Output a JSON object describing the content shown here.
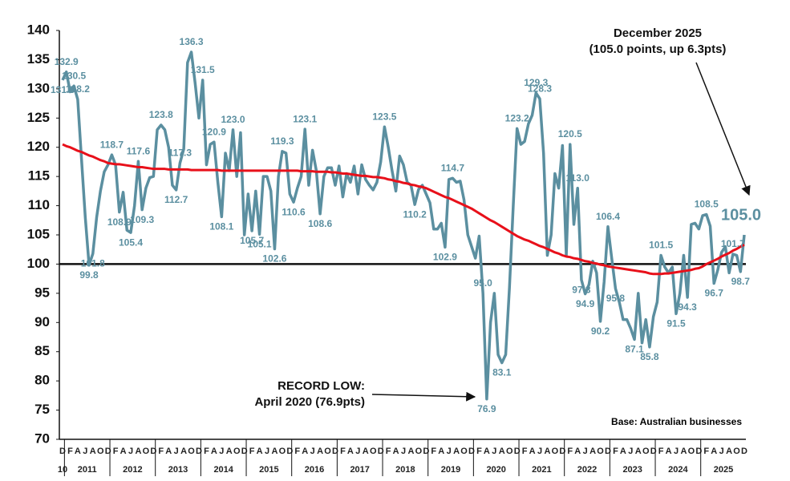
{
  "chart_data": {
    "type": "line",
    "annotations": [
      "December 2025",
      "(105.0 points, up 6.3pts)",
      "RECORD LOW:",
      "April 2020 (76.9pts)",
      "Base: Australian businesses"
    ],
    "ylim": [
      70,
      140
    ],
    "yticks": [
      70,
      75,
      80,
      85,
      90,
      95,
      100,
      105,
      110,
      115,
      120,
      125,
      130,
      135,
      140
    ],
    "reference_line": 100,
    "x_groups": [
      "10",
      "2011",
      "2012",
      "2013",
      "2014",
      "2015",
      "2016",
      "2017",
      "2018",
      "2019",
      "2020",
      "2021",
      "2022",
      "2023",
      "2024",
      "2025"
    ],
    "categories": [
      "D",
      null,
      "F",
      null,
      "A",
      null,
      "J",
      null,
      "A",
      null,
      "O",
      null,
      "D",
      null,
      "F",
      null,
      "A",
      null,
      "J",
      null,
      "A",
      null,
      "O",
      null,
      "D",
      null,
      "F",
      null,
      "A",
      null,
      "J",
      null,
      "A",
      null,
      "O",
      null,
      "D",
      null,
      "F",
      null,
      "A",
      null,
      "J",
      null,
      "A",
      null,
      "O",
      null,
      "D",
      null,
      "F",
      null,
      "A",
      null,
      "J",
      null,
      "A",
      null,
      "O",
      null,
      "D",
      null,
      "F",
      null,
      "A",
      null,
      "J",
      null,
      "A",
      null,
      "O",
      null,
      "D",
      null,
      "F",
      null,
      "A",
      null,
      "J",
      null,
      "A",
      null,
      "O",
      null,
      "D",
      null,
      "F",
      null,
      "A",
      null,
      "J",
      null,
      "A",
      null,
      "O",
      null,
      "D",
      null,
      "F",
      null,
      "A",
      null,
      "J",
      null,
      "A",
      null,
      "O",
      null,
      "D",
      null,
      "F",
      null,
      "A",
      null,
      "J",
      null,
      "A",
      null,
      "O",
      null,
      "D",
      null,
      "F",
      null,
      "A",
      null,
      "J",
      null,
      "A",
      null,
      "O",
      null,
      "D",
      null,
      "F",
      null,
      "A",
      null,
      "J",
      null,
      "A",
      null,
      "O",
      null,
      "D",
      null,
      "F",
      null,
      "A",
      null,
      "J",
      null,
      "A",
      null,
      "O",
      null,
      "D",
      null,
      "F",
      null,
      "A",
      null,
      "J",
      null,
      "A",
      null,
      "O",
      null,
      "D",
      null,
      "F",
      null,
      "A",
      null,
      "J",
      null,
      "A",
      null,
      "O",
      null,
      "D"
    ],
    "series": [
      {
        "color": "#5b8fa0",
        "values": [
          131.5,
          132.9,
          129.5,
          130.5,
          128.2,
          118,
          108,
          99.8,
          101.8,
          108,
          112.5,
          115.8,
          117,
          118.7,
          117,
          108.9,
          112.3,
          105.8,
          105.4,
          110,
          117.6,
          109.3,
          113,
          114.8,
          115,
          123,
          123.8,
          123,
          120,
          113.5,
          112.7,
          117.3,
          119.7,
          134.5,
          136.3,
          131,
          125,
          131.5,
          117,
          120.5,
          120.9,
          114,
          108.1,
          119,
          116,
          123,
          115,
          122.5,
          105,
          112,
          105.7,
          112.5,
          105.1,
          115,
          115,
          112.5,
          102.6,
          115,
          119.3,
          119,
          112,
          110.6,
          113,
          115,
          123.1,
          113.5,
          119.5,
          116,
          108.6,
          115,
          116.5,
          116.5,
          113.5,
          116.8,
          111.5,
          115.5,
          114,
          116.8,
          112,
          117,
          114.5,
          113.5,
          112.7,
          114,
          117.5,
          123.5,
          120,
          116,
          112.5,
          118.5,
          117,
          114,
          113.5,
          110.2,
          112.8,
          113.5,
          112,
          110.5,
          106,
          106,
          107,
          102.9,
          114.5,
          114.7,
          114,
          114.2,
          111,
          105,
          103,
          101,
          104.8,
          95,
          76.9,
          90,
          95,
          84.5,
          83.1,
          84.5,
          96,
          110,
          123.2,
          120.5,
          121,
          124,
          125.5,
          129.3,
          128.3,
          119,
          101.5,
          105,
          115.5,
          113,
          120.3,
          101.5,
          120.5,
          106.8,
          113,
          97.3,
          94.9,
          96.5,
          100.5,
          98.5,
          90.2,
          97,
          106.4,
          101,
          95.8,
          93.5,
          90.5,
          90.5,
          89,
          87.1,
          95,
          86.5,
          90.5,
          85.8,
          91,
          93.5,
          101.5,
          99.5,
          98.5,
          99.5,
          91.5,
          95,
          101.5,
          94.3,
          106.8,
          107,
          106,
          108.3,
          108.5,
          106.5,
          96.7,
          99,
          102,
          103,
          98.5,
          101.7,
          101.5,
          98.7,
          105.0
        ],
        "value_labels": [
          "131.5",
          "132.9",
          null,
          "130.5",
          "128.2",
          null,
          null,
          "99.8",
          "101.8",
          null,
          null,
          null,
          null,
          "118.7",
          null,
          "108.9",
          null,
          null,
          "105.4",
          null,
          "117.6",
          "109.3",
          null,
          null,
          null,
          null,
          "123.8",
          null,
          null,
          null,
          "112.7",
          "117.3",
          null,
          null,
          "136.3",
          null,
          null,
          "131.5",
          null,
          null,
          "120.9",
          null,
          "108.1",
          null,
          null,
          "123.0",
          null,
          null,
          null,
          null,
          "105.7",
          null,
          "105.1",
          null,
          null,
          null,
          "102.6",
          null,
          "119.3",
          null,
          null,
          "110.6",
          null,
          null,
          "123.1",
          null,
          null,
          null,
          "108.6",
          null,
          null,
          null,
          null,
          null,
          null,
          null,
          null,
          null,
          null,
          null,
          null,
          null,
          null,
          null,
          null,
          "123.5",
          null,
          null,
          null,
          null,
          null,
          null,
          null,
          "110.2",
          null,
          null,
          null,
          null,
          null,
          null,
          null,
          "102.9",
          null,
          "114.7",
          null,
          null,
          null,
          null,
          null,
          null,
          null,
          "95.0",
          "76.9",
          null,
          null,
          null,
          "83.1",
          null,
          null,
          null,
          "123.2",
          null,
          null,
          null,
          null,
          "129.3",
          "128.3",
          null,
          null,
          null,
          null,
          null,
          null,
          null,
          "120.5",
          null,
          "113.0",
          "97.3",
          "94.9",
          null,
          null,
          null,
          "90.2",
          null,
          "106.4",
          null,
          "95.8",
          null,
          null,
          null,
          null,
          "87.1",
          null,
          null,
          null,
          "85.8",
          null,
          null,
          "101.5",
          null,
          null,
          null,
          "91.5",
          null,
          null,
          "94.3",
          null,
          null,
          null,
          null,
          "108.5",
          null,
          "96.7",
          null,
          null,
          null,
          null,
          "101.7",
          null,
          "98.7",
          "105.0"
        ]
      },
      {
        "color": "#e8101a",
        "values": [
          120.5,
          120.2,
          120.0,
          119.7,
          119.4,
          119.2,
          118.9,
          118.6,
          118.4,
          118.1,
          117.8,
          117.6,
          117.3,
          117.2,
          117.1,
          117.1,
          117.0,
          116.9,
          116.8,
          116.7,
          116.6,
          116.6,
          116.5,
          116.4,
          116.3,
          116.3,
          116.3,
          116.3,
          116.2,
          116.2,
          116.2,
          116.2,
          116.2,
          116.2,
          116.1,
          116.1,
          116.1,
          116.1,
          116.1,
          116.1,
          116.1,
          116.1,
          116.0,
          116.0,
          116.0,
          116.0,
          116.0,
          116.0,
          116.0,
          116.0,
          116.0,
          116.0,
          116.0,
          116.0,
          116.0,
          116.0,
          116.0,
          116.0,
          116.0,
          116.0,
          116.0,
          116.0,
          116.0,
          115.9,
          115.9,
          115.9,
          115.9,
          115.8,
          115.8,
          115.8,
          115.8,
          115.7,
          115.7,
          115.6,
          115.5,
          115.5,
          115.4,
          115.3,
          115.2,
          115.1,
          115.1,
          115.0,
          114.9,
          114.9,
          114.8,
          114.7,
          114.5,
          114.4,
          114.2,
          114.1,
          113.9,
          113.8,
          113.6,
          113.5,
          113.3,
          113.2,
          113.0,
          112.7,
          112.4,
          112.1,
          111.8,
          111.5,
          111.3,
          111.0,
          110.7,
          110.4,
          110.1,
          109.8,
          109.5,
          109.1,
          108.7,
          108.3,
          107.9,
          107.5,
          107.2,
          106.8,
          106.4,
          106.0,
          105.6,
          105.2,
          104.8,
          104.5,
          104.2,
          104.0,
          103.7,
          103.4,
          103.1,
          102.9,
          102.6,
          102.3,
          102.0,
          101.8,
          101.5,
          101.3,
          101.2,
          101.0,
          100.9,
          100.7,
          100.5,
          100.4,
          100.2,
          100.1,
          99.9,
          99.8,
          99.6,
          99.5,
          99.4,
          99.3,
          99.2,
          99.1,
          99.0,
          98.9,
          98.8,
          98.7,
          98.6,
          98.4,
          98.3,
          98.3,
          98.3,
          98.4,
          98.4,
          98.5,
          98.6,
          98.7,
          98.8,
          98.9,
          99.0,
          99.2,
          99.3,
          99.6,
          100.0,
          100.3,
          100.6,
          100.9,
          101.3,
          101.6,
          101.9,
          102.3,
          102.6,
          103.0,
          103.3
        ]
      }
    ]
  }
}
